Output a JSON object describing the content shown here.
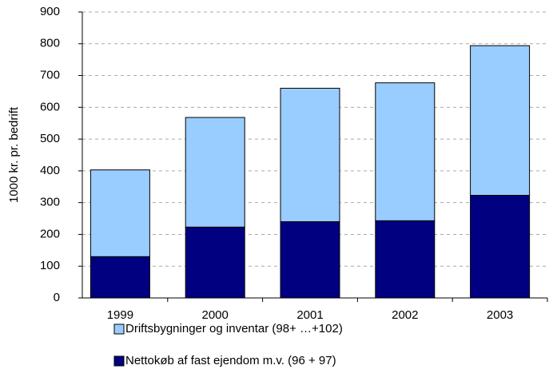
{
  "chart_data": {
    "type": "stacked_bar",
    "y_label": "1000 kr. pr. bedrift",
    "categories": [
      "1999",
      "2000",
      "2001",
      "2002",
      "2003"
    ],
    "series": [
      {
        "name": "Nettokøb af fast ejendom m.v. (96 + 97)",
        "color": "#000080",
        "values": [
          130,
          223,
          240,
          243,
          323
        ]
      },
      {
        "name": "Driftsbygninger og inventar (98+ …+102)",
        "color": "#99ccff",
        "values": [
          273,
          345,
          420,
          434,
          471
        ]
      }
    ],
    "ylim": [
      0,
      900
    ],
    "yticks": [
      0,
      100,
      200,
      300,
      400,
      500,
      600,
      700,
      800,
      900
    ],
    "grid": true
  }
}
